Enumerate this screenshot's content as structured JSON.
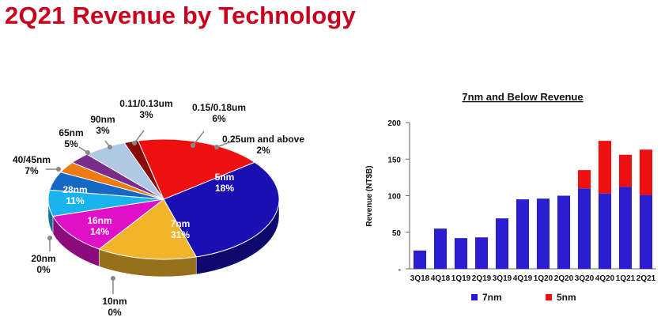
{
  "page": {
    "title": "2Q21 Revenue by Technology"
  },
  "chart_data": [
    {
      "type": "pie",
      "slices": [
        {
          "label": "7nm",
          "percent": "31%",
          "value": 31,
          "color": "#1a0fb0"
        },
        {
          "label": "16nm",
          "percent": "14%",
          "value": 14,
          "color": "#f2b42a"
        },
        {
          "label": "20nm",
          "percent": "0%",
          "value": 0,
          "color": "#e6a000"
        },
        {
          "label": "10nm",
          "percent": "0%",
          "value": 0,
          "color": "#1a0fb0"
        },
        {
          "label": "28nm",
          "percent": "11%",
          "value": 11,
          "color": "#e010c8"
        },
        {
          "label": "40/45nm",
          "percent": "7%",
          "value": 7,
          "color": "#19b4ee"
        },
        {
          "label": "65nm",
          "percent": "5%",
          "value": 5,
          "color": "#1568c4"
        },
        {
          "label": "90nm",
          "percent": "3%",
          "value": 3,
          "color": "#ee7a12"
        },
        {
          "label": "0.11/0.13um",
          "percent": "3%",
          "value": 3,
          "color": "#7a2c8a"
        },
        {
          "label": "0.15/0.18um",
          "percent": "6%",
          "value": 6,
          "color": "#b0c8e4"
        },
        {
          "label": "0.25um and above",
          "percent": "2%",
          "value": 2,
          "color": "#8a0a0a"
        },
        {
          "label": "5nm",
          "percent": "18%",
          "value": 18,
          "color": "#ee1010"
        }
      ]
    },
    {
      "type": "bar",
      "stacked": true,
      "title": "7nm and Below Revenue",
      "ylabel": "Revenue (NT$B)",
      "ylim": [
        0,
        200
      ],
      "yticks": [
        "-",
        "50",
        "100",
        "150",
        "200"
      ],
      "categories": [
        "3Q18",
        "4Q18",
        "1Q19",
        "2Q19",
        "3Q19",
        "4Q19",
        "1Q20",
        "2Q20",
        "3Q20",
        "4Q20",
        "1Q21",
        "2Q21"
      ],
      "series": [
        {
          "name": "7nm",
          "color": "#2a1ed0",
          "values": [
            25,
            55,
            42,
            43,
            69,
            95,
            96,
            100,
            110,
            103,
            112,
            101
          ]
        },
        {
          "name": "5nm",
          "color": "#ee1010",
          "values": [
            0,
            0,
            0,
            0,
            0,
            0,
            0,
            0,
            25,
            72,
            44,
            62
          ]
        }
      ],
      "legend": "bottom"
    }
  ]
}
